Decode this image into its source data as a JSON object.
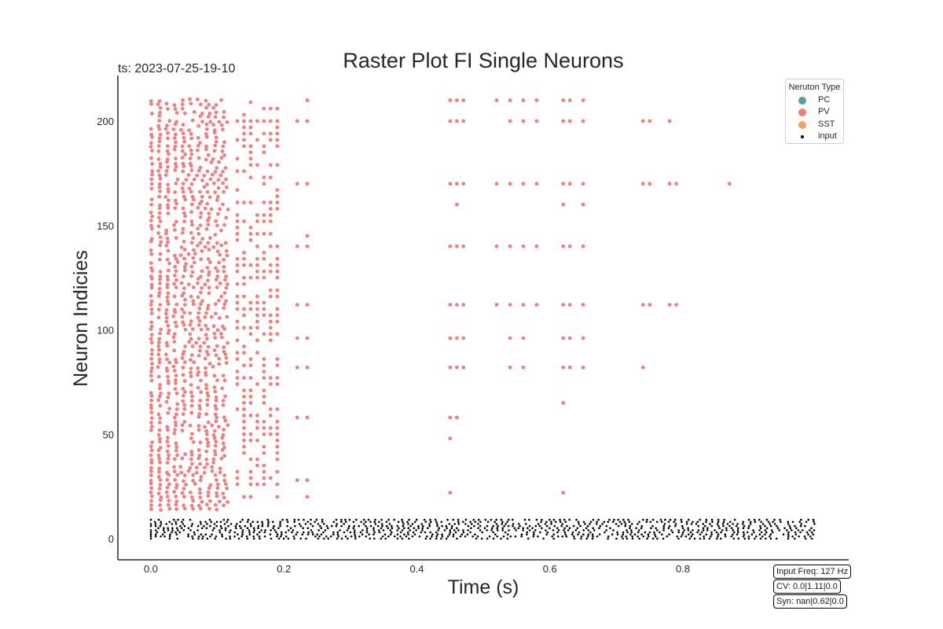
{
  "header": {
    "title": "Raster Plot FI Single Neurons",
    "timestamp": "ts: 2023-07-25-19-10"
  },
  "info_boxes": [
    "Input Freq: 127 Hz",
    "CV: 0.0|1.11|0.0",
    "Syn: nan|0.62|0.0"
  ],
  "legend": {
    "title": "Neruton Type",
    "items": [
      {
        "label": "PC",
        "color": "#5f9ea0",
        "shape": "circle"
      },
      {
        "label": "PV",
        "color": "#f08080",
        "shape": "circle"
      },
      {
        "label": "SST",
        "color": "#f4a460",
        "shape": "circle"
      },
      {
        "label": "input",
        "color": "#000000",
        "shape": "small-dot"
      }
    ]
  },
  "chart_data": {
    "type": "scatter",
    "title": "Raster Plot FI Single Neurons",
    "xlabel": "Time (s)",
    "ylabel": "Neuron Indicies",
    "xlim": [
      -0.05,
      1.05
    ],
    "ylim": [
      -10,
      220
    ],
    "xticks": [
      0.0,
      0.2,
      0.4,
      0.6,
      0.8
    ],
    "xtick_labels": [
      "0.0",
      "0.2",
      "0.4",
      "0.6",
      "0.8"
    ],
    "yticks": [
      0,
      50,
      100,
      150,
      200
    ],
    "ytick_labels": [
      "0",
      "50",
      "100",
      "150",
      "200"
    ],
    "grid": false,
    "legend_position": "top-right",
    "series": [
      {
        "name": "PV",
        "color": "#f08080",
        "neuron_range": [
          14,
          211
        ],
        "dense_window": [
          0.0,
          0.115
        ],
        "band_times": [
          0.13,
          0.14,
          0.15,
          0.16,
          0.17,
          0.18,
          0.19
        ],
        "synchronized_events": [
          {
            "t": 0.22,
            "neurons": [
              200,
              170,
              140,
              112,
              96,
              82,
              58,
              28
            ]
          },
          {
            "t": 0.235,
            "neurons": [
              210,
              200,
              170,
              145,
              140,
              112,
              96,
              82,
              58,
              28,
              20
            ]
          },
          {
            "t": 0.45,
            "neurons": [
              210,
              200,
              170,
              140,
              112,
              96,
              82,
              58,
              48,
              22
            ]
          },
          {
            "t": 0.46,
            "neurons": [
              210,
              200,
              170,
              160,
              140,
              112,
              96,
              82,
              58
            ]
          },
          {
            "t": 0.47,
            "neurons": [
              210,
              200,
              170,
              140,
              112,
              96,
              82
            ]
          },
          {
            "t": 0.52,
            "neurons": [
              210,
              170,
              140,
              112
            ]
          },
          {
            "t": 0.54,
            "neurons": [
              210,
              200,
              170,
              140,
              112,
              96,
              82
            ]
          },
          {
            "t": 0.56,
            "neurons": [
              210,
              200,
              170,
              140,
              112,
              96,
              82
            ]
          },
          {
            "t": 0.58,
            "neurons": [
              210,
              200,
              170,
              140,
              112
            ]
          },
          {
            "t": 0.62,
            "neurons": [
              210,
              200,
              170,
              160,
              140,
              112,
              96,
              82,
              65,
              22
            ]
          },
          {
            "t": 0.63,
            "neurons": [
              210,
              200,
              170,
              140,
              112,
              96,
              82
            ]
          },
          {
            "t": 0.65,
            "neurons": [
              210,
              200,
              170,
              160,
              140,
              112,
              96,
              82
            ]
          },
          {
            "t": 0.74,
            "neurons": [
              200,
              170,
              112,
              82
            ]
          },
          {
            "t": 0.75,
            "neurons": [
              200,
              170,
              112
            ]
          },
          {
            "t": 0.78,
            "neurons": [
              200,
              170,
              112
            ]
          },
          {
            "t": 0.79,
            "neurons": [
              170,
              112
            ]
          },
          {
            "t": 0.87,
            "neurons": [
              170
            ]
          }
        ]
      },
      {
        "name": "input",
        "color": "#000000",
        "neuron_range": [
          0,
          9
        ],
        "time_range": [
          0.0,
          1.0
        ]
      }
    ]
  }
}
